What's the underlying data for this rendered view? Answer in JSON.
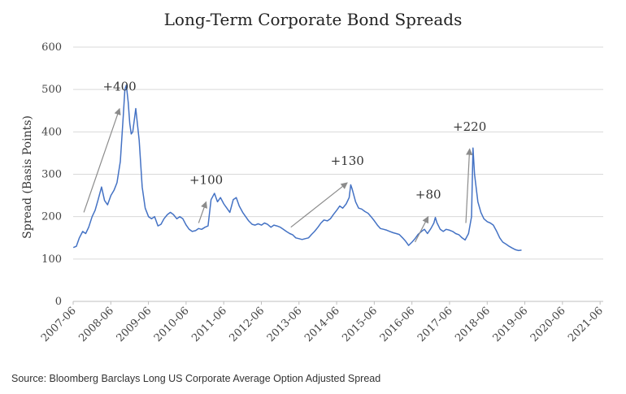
{
  "chart_data": {
    "type": "line",
    "title": "Long-Term Corporate Bond Spreads",
    "xlabel": "",
    "ylabel": "Spread (Basis Points)",
    "ylim": [
      0,
      600
    ],
    "yticks": [
      0,
      100,
      200,
      300,
      400,
      500,
      600
    ],
    "xlim": [
      2007.4167,
      2021.5
    ],
    "xticks": [
      "2007-06",
      "2008-06",
      "2009-06",
      "2010-06",
      "2011-06",
      "2012-06",
      "2013-06",
      "2014-06",
      "2015-06",
      "2016-06",
      "2017-06",
      "2018-06",
      "2019-06",
      "2020-06",
      "2021-06"
    ],
    "grid": "horizontal",
    "series": [
      {
        "name": "Long US Corporate Average Option Adjusted Spread",
        "color": "#4472c4",
        "points": [
          [
            2007.42,
            127
          ],
          [
            2007.5,
            130
          ],
          [
            2007.58,
            150
          ],
          [
            2007.67,
            165
          ],
          [
            2007.75,
            160
          ],
          [
            2007.83,
            175
          ],
          [
            2007.92,
            200
          ],
          [
            2008.0,
            215
          ],
          [
            2008.08,
            240
          ],
          [
            2008.17,
            270
          ],
          [
            2008.25,
            238
          ],
          [
            2008.33,
            228
          ],
          [
            2008.42,
            250
          ],
          [
            2008.5,
            262
          ],
          [
            2008.58,
            280
          ],
          [
            2008.67,
            330
          ],
          [
            2008.75,
            440
          ],
          [
            2008.79,
            500
          ],
          [
            2008.83,
            510
          ],
          [
            2008.88,
            470
          ],
          [
            2008.92,
            420
          ],
          [
            2008.96,
            395
          ],
          [
            2009.0,
            400
          ],
          [
            2009.08,
            455
          ],
          [
            2009.17,
            380
          ],
          [
            2009.25,
            270
          ],
          [
            2009.33,
            220
          ],
          [
            2009.42,
            200
          ],
          [
            2009.5,
            195
          ],
          [
            2009.58,
            200
          ],
          [
            2009.67,
            178
          ],
          [
            2009.75,
            182
          ],
          [
            2009.83,
            195
          ],
          [
            2009.92,
            205
          ],
          [
            2010.0,
            210
          ],
          [
            2010.08,
            205
          ],
          [
            2010.17,
            195
          ],
          [
            2010.25,
            200
          ],
          [
            2010.33,
            195
          ],
          [
            2010.42,
            180
          ],
          [
            2010.5,
            170
          ],
          [
            2010.58,
            165
          ],
          [
            2010.67,
            167
          ],
          [
            2010.75,
            172
          ],
          [
            2010.83,
            170
          ],
          [
            2010.92,
            175
          ],
          [
            2011.0,
            178
          ],
          [
            2011.08,
            240
          ],
          [
            2011.17,
            255
          ],
          [
            2011.25,
            235
          ],
          [
            2011.33,
            245
          ],
          [
            2011.42,
            230
          ],
          [
            2011.5,
            220
          ],
          [
            2011.58,
            210
          ],
          [
            2011.67,
            240
          ],
          [
            2011.75,
            245
          ],
          [
            2011.83,
            225
          ],
          [
            2011.92,
            210
          ],
          [
            2012.0,
            200
          ],
          [
            2012.08,
            190
          ],
          [
            2012.17,
            182
          ],
          [
            2012.25,
            180
          ],
          [
            2012.33,
            183
          ],
          [
            2012.42,
            180
          ],
          [
            2012.5,
            185
          ],
          [
            2012.58,
            182
          ],
          [
            2012.67,
            175
          ],
          [
            2012.75,
            180
          ],
          [
            2012.83,
            178
          ],
          [
            2012.92,
            175
          ],
          [
            2013.0,
            170
          ],
          [
            2013.08,
            165
          ],
          [
            2013.17,
            160
          ],
          [
            2013.25,
            157
          ],
          [
            2013.33,
            150
          ],
          [
            2013.42,
            148
          ],
          [
            2013.5,
            146
          ],
          [
            2013.58,
            148
          ],
          [
            2013.67,
            150
          ],
          [
            2013.75,
            158
          ],
          [
            2013.83,
            165
          ],
          [
            2013.92,
            175
          ],
          [
            2014.0,
            185
          ],
          [
            2014.08,
            192
          ],
          [
            2014.17,
            190
          ],
          [
            2014.25,
            195
          ],
          [
            2014.33,
            205
          ],
          [
            2014.42,
            215
          ],
          [
            2014.5,
            225
          ],
          [
            2014.58,
            220
          ],
          [
            2014.67,
            230
          ],
          [
            2014.75,
            245
          ],
          [
            2014.79,
            275
          ],
          [
            2014.83,
            265
          ],
          [
            2014.92,
            235
          ],
          [
            2015.0,
            220
          ],
          [
            2015.08,
            218
          ],
          [
            2015.17,
            212
          ],
          [
            2015.25,
            208
          ],
          [
            2015.33,
            200
          ],
          [
            2015.42,
            190
          ],
          [
            2015.5,
            180
          ],
          [
            2015.58,
            172
          ],
          [
            2015.67,
            170
          ],
          [
            2015.75,
            168
          ],
          [
            2015.83,
            165
          ],
          [
            2015.92,
            162
          ],
          [
            2016.0,
            160
          ],
          [
            2016.08,
            158
          ],
          [
            2016.17,
            150
          ],
          [
            2016.25,
            142
          ],
          [
            2016.33,
            132
          ],
          [
            2016.42,
            140
          ],
          [
            2016.5,
            148
          ],
          [
            2016.58,
            158
          ],
          [
            2016.67,
            165
          ],
          [
            2016.75,
            170
          ],
          [
            2016.83,
            160
          ],
          [
            2016.92,
            172
          ],
          [
            2017.0,
            185
          ],
          [
            2017.04,
            198
          ],
          [
            2017.08,
            186
          ],
          [
            2017.17,
            170
          ],
          [
            2017.25,
            165
          ],
          [
            2017.33,
            170
          ],
          [
            2017.42,
            168
          ],
          [
            2017.5,
            165
          ],
          [
            2017.58,
            160
          ],
          [
            2017.67,
            157
          ],
          [
            2017.75,
            150
          ],
          [
            2017.83,
            145
          ],
          [
            2017.92,
            160
          ],
          [
            2018.0,
            200
          ],
          [
            2018.04,
            362
          ],
          [
            2018.08,
            300
          ],
          [
            2018.17,
            235
          ],
          [
            2018.25,
            210
          ],
          [
            2018.33,
            195
          ],
          [
            2018.42,
            188
          ],
          [
            2018.5,
            185
          ],
          [
            2018.58,
            180
          ],
          [
            2018.67,
            165
          ],
          [
            2018.75,
            150
          ],
          [
            2018.83,
            140
          ],
          [
            2018.92,
            135
          ],
          [
            2019.0,
            130
          ],
          [
            2019.08,
            126
          ],
          [
            2019.17,
            122
          ],
          [
            2019.25,
            120
          ],
          [
            2019.33,
            121
          ]
        ]
      }
    ],
    "annotations": [
      {
        "label": "+400",
        "from": [
          2007.7,
          210
        ],
        "to": [
          2008.65,
          455
        ]
      },
      {
        "label": "+100",
        "from": [
          2010.75,
          185
        ],
        "to": [
          2010.95,
          235
        ]
      },
      {
        "label": "+130",
        "from": [
          2013.2,
          175
        ],
        "to": [
          2014.7,
          280
        ]
      },
      {
        "label": "+80",
        "from": [
          2016.5,
          140
        ],
        "to": [
          2016.85,
          200
        ]
      },
      {
        "label": "+220",
        "from": [
          2017.85,
          185
        ],
        "to": [
          2017.95,
          360
        ]
      }
    ]
  },
  "source": "Source: Bloomberg Barclays Long US Corporate Average Option Adjusted Spread"
}
